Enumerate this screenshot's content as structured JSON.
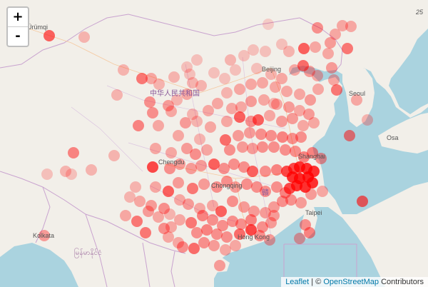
{
  "zoom": {
    "in_label": "+",
    "out_label": "-"
  },
  "attribution": {
    "leaflet": "Leaflet",
    "sep": " | © ",
    "osm": "OpenStreetMap",
    "suffix": " Contributors"
  },
  "labels": {
    "urumqi": "Ürümqi",
    "beijing": "Beijing",
    "china": "中华人民共和国",
    "seoul": "Seoul",
    "chengdu": "Chengdu",
    "chongqing": "Chongqing",
    "shanghai": "Shanghai",
    "taipei": "Taipei",
    "hongkong": "Hong Kong",
    "kolkata": "Kolkata",
    "myanmar": "မြန်မာနိုင်ငံ",
    "jiangxi": "赣",
    "osaka": "Osa",
    "corner": "25"
  },
  "colors": {
    "marker": "#ff0000",
    "land": "#f2efe9",
    "water": "#aad3df",
    "border": "#c9a3cf"
  }
}
